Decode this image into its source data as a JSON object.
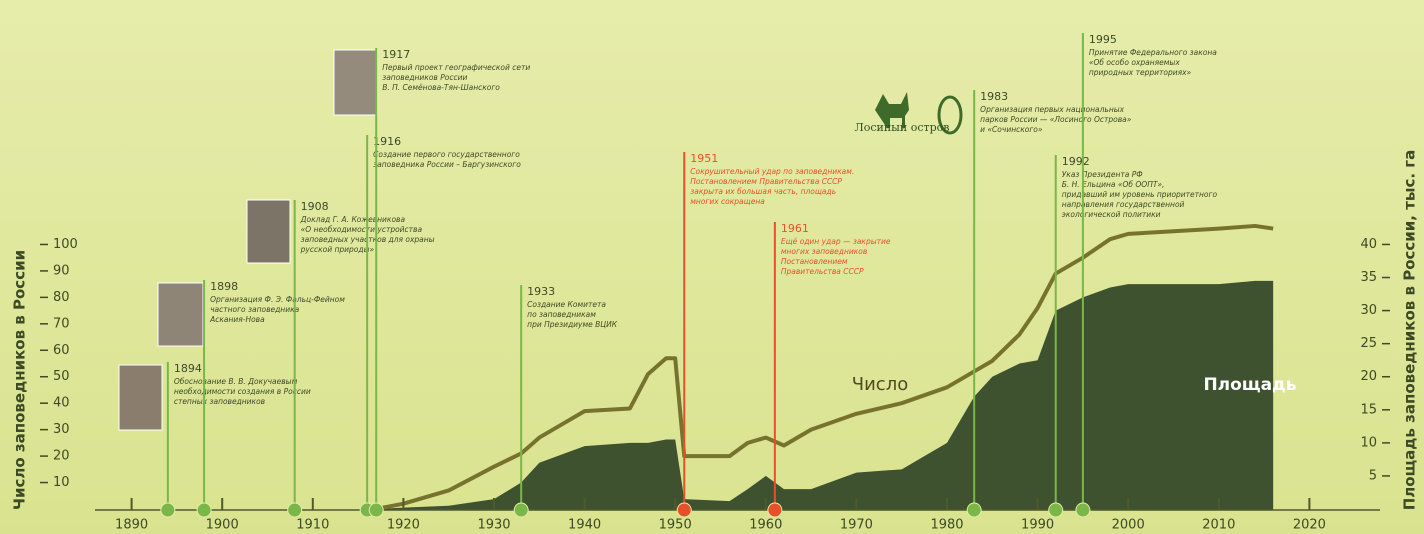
{
  "chart_data": {
    "type": "line",
    "ylabel": "Число заповедников в России",
    "y2label": "Площадь заповедников в России, тыс. га",
    "xlim": [
      1880,
      2030
    ],
    "xticks": [
      1890,
      1900,
      1910,
      1920,
      1930,
      1940,
      1950,
      1960,
      1970,
      1980,
      1990,
      2000,
      2010,
      2020
    ],
    "ylim": [
      0,
      110
    ],
    "yticks": [
      10,
      20,
      30,
      40,
      50,
      60,
      70,
      80,
      90,
      100
    ],
    "y2lim": [
      0,
      44
    ],
    "y2ticks": [
      5,
      10,
      15,
      20,
      25,
      30,
      35,
      40
    ],
    "x": [
      1917,
      1920,
      1925,
      1930,
      1933,
      1935,
      1938,
      1940,
      1945,
      1947,
      1949,
      1950,
      1951,
      1956,
      1958,
      1960,
      1962,
      1965,
      1970,
      1975,
      1980,
      1983,
      1985,
      1988,
      1990,
      1992,
      1995,
      1998,
      2000,
      2005,
      2010,
      2014,
      2016
    ],
    "series": [
      {
        "name": "Число",
        "type": "line",
        "color": "#77732f",
        "values": [
          0,
          2,
          7,
          16,
          21,
          27,
          33,
          37,
          38,
          51,
          57,
          57,
          20,
          20,
          25,
          27,
          24,
          30,
          36,
          40,
          46,
          52,
          56,
          66,
          76,
          89,
          95,
          102,
          104,
          105,
          106,
          107,
          106
        ]
      },
      {
        "name": "Площадь",
        "type": "area",
        "axis": "y2",
        "color": "#3e5230",
        "values": [
          0,
          0.2,
          0.5,
          1.5,
          4,
          7,
          8.5,
          9.5,
          10,
          10,
          10.5,
          10.5,
          1.5,
          1.2,
          3,
          5,
          3,
          3,
          5.5,
          6,
          10,
          17,
          20,
          22,
          22.5,
          30,
          32,
          33.5,
          34,
          34,
          34,
          34.5,
          34.5
        ]
      }
    ],
    "logo_text": "Лосиный остров",
    "annotations": [
      {
        "x": 1894,
        "color": "#7ab648",
        "lines": [
          "Обоснование В. В. Докучаевым",
          "необходимости создания в России",
          "степных заповедников"
        ]
      },
      {
        "x": 1898,
        "color": "#7ab648",
        "lines": [
          "Организация Ф. Э. Фальц-Фейном",
          "частного заповедника",
          "Аскания-Нова"
        ]
      },
      {
        "x": 1908,
        "color": "#7ab648",
        "lines": [
          "Доклад Г. А. Кожевникова",
          "«О необходимости устройства",
          "заповедных участков для охраны",
          "русской природы»"
        ]
      },
      {
        "x": 1916,
        "color": "#7ab648",
        "lines": [
          "Создание первого государственного",
          "заповедника России – Баргузинского"
        ]
      },
      {
        "x": 1917,
        "color": "#7ab648",
        "lines": [
          "Первый проект географической сети",
          "заповедников России",
          "В. П. Семёнова-Тян-Шанского"
        ]
      },
      {
        "x": 1933,
        "color": "#7ab648",
        "lines": [
          "Создание Комитета",
          "по заповедникам",
          "при Президиуме ВЦИК"
        ]
      },
      {
        "x": 1951,
        "color": "#e8502a",
        "lines": [
          "Сокрушительный удар по заповедникам.",
          "Постановлением Правительства СССР",
          "закрыта их большая часть, площадь",
          "многих сокращена"
        ]
      },
      {
        "x": 1961,
        "color": "#e8502a",
        "lines": [
          "Ещё один удар — закрытие",
          "многих заповедников",
          "Постановлением",
          "Правительства СССР"
        ]
      },
      {
        "x": 1983,
        "color": "#7ab648",
        "lines": [
          "Организация первых национальных",
          "парков России — «Лосиного Острова»",
          "и «Сочинского»"
        ]
      },
      {
        "x": 1992,
        "color": "#7ab648",
        "lines": [
          "Указ Президента РФ",
          "Б. Н. Ельцина «Об ООПТ»,",
          "придавший им уровень приоритетного",
          "направления государственной",
          "экологической политики"
        ]
      },
      {
        "x": 1995,
        "color": "#7ab648",
        "lines": [
          "Принятие Федерального закона",
          "«Об особо охраняемых",
          "природных территориях»"
        ]
      }
    ]
  }
}
